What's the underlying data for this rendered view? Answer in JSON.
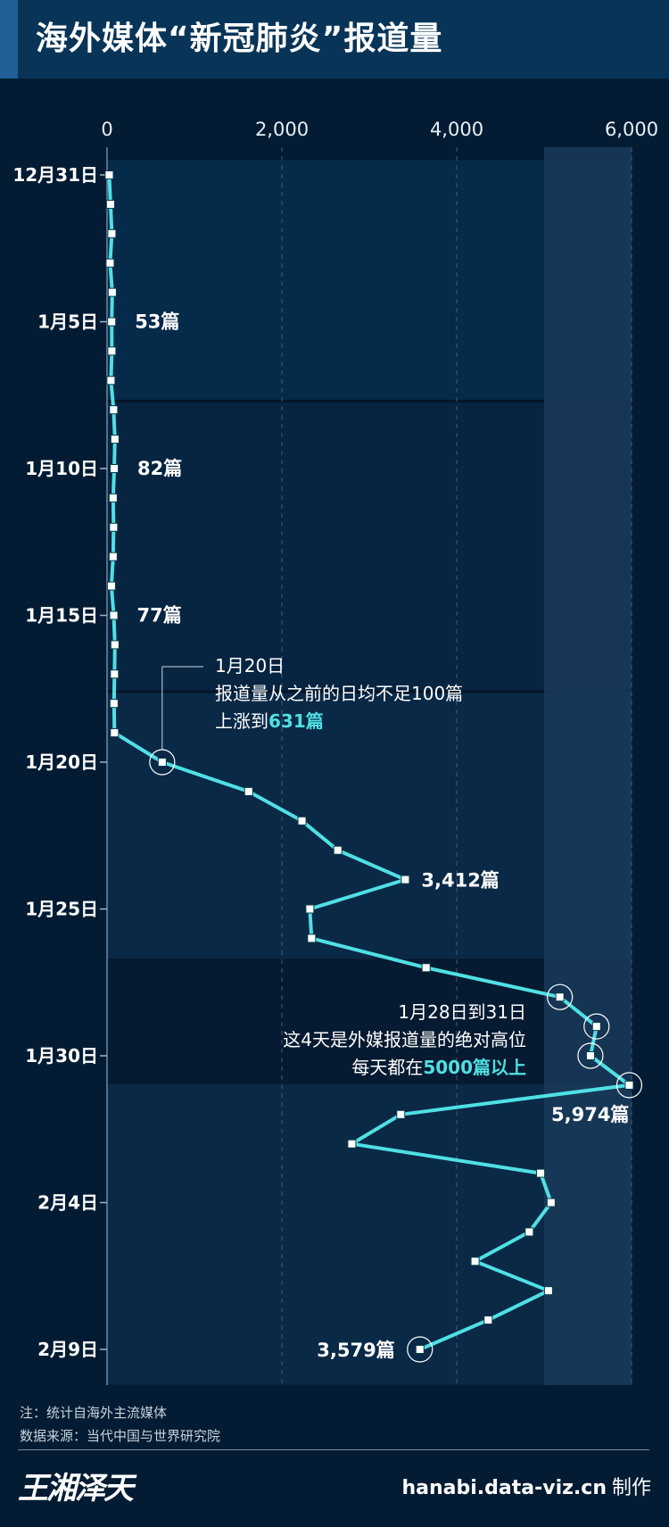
{
  "title": "海外媒体“新冠肺炎”报道量",
  "colors": {
    "background": "#041c33",
    "band": "#0b2b4c",
    "highlight_column": "#1a3a5a",
    "line": "#4fe0e4",
    "accent_text": "#4fe0e4",
    "text": "#ffffff"
  },
  "chart_data": {
    "type": "line",
    "orientation": "horizontal",
    "x_ticks": [
      "0",
      "2,000",
      "4,000",
      "6,000"
    ],
    "x_tick_values": [
      0,
      2000,
      4000,
      6000
    ],
    "xlim": [
      0,
      6000
    ],
    "y_tick_labels": [
      {
        "label": "12月31日",
        "index": 0
      },
      {
        "label": "1月5日",
        "index": 5
      },
      {
        "label": "1月10日",
        "index": 10
      },
      {
        "label": "1月15日",
        "index": 15
      },
      {
        "label": "1月20日",
        "index": 20
      },
      {
        "label": "1月25日",
        "index": 25
      },
      {
        "label": "1月30日",
        "index": 30
      },
      {
        "label": "2月4日",
        "index": 35
      },
      {
        "label": "2月9日",
        "index": 40
      }
    ],
    "highlight_range": [
      5000,
      6000
    ],
    "dates": [
      "12月31日",
      "1月1日",
      "1月2日",
      "1月3日",
      "1月4日",
      "1月5日",
      "1月6日",
      "1月7日",
      "1月8日",
      "1月9日",
      "1月10日",
      "1月11日",
      "1月12日",
      "1月13日",
      "1月14日",
      "1月15日",
      "1月16日",
      "1月17日",
      "1月18日",
      "1月19日",
      "1月20日",
      "1月21日",
      "1月22日",
      "1月23日",
      "1月24日",
      "1月25日",
      "1月26日",
      "1月27日",
      "1月28日",
      "1月29日",
      "1月30日",
      "1月31日",
      "2月1日",
      "2月2日",
      "2月3日",
      "2月4日",
      "2月5日",
      "2月6日",
      "2月7日",
      "2月8日",
      "2月9日"
    ],
    "values": [
      25,
      40,
      55,
      35,
      60,
      53,
      55,
      45,
      75,
      90,
      82,
      70,
      75,
      70,
      50,
      77,
      90,
      85,
      80,
      85,
      631,
      1620,
      2230,
      2640,
      3412,
      2320,
      2340,
      3650,
      5180,
      5600,
      5530,
      5974,
      3360,
      2800,
      4960,
      5080,
      4830,
      4210,
      5050,
      4360,
      3579
    ],
    "data_labels": [
      {
        "index": 5,
        "text": "53篇"
      },
      {
        "index": 10,
        "text": "82篇"
      },
      {
        "index": 15,
        "text": "77篇"
      },
      {
        "index": 24,
        "text": "3,412篇"
      },
      {
        "index": 31,
        "text": "5,974篇"
      },
      {
        "index": 40,
        "text": "3,579篇"
      }
    ],
    "circled_indices": [
      20,
      28,
      29,
      30,
      31,
      40
    ],
    "annotations": {
      "jan20": {
        "line1": "1月20日",
        "line2": "报道量从之前的日均不足100篇",
        "line3_prefix": "上涨到",
        "line3_highlight": "631篇"
      },
      "jan28": {
        "line1": "1月28日到31日",
        "line2": "这4天是外媒报道量的绝对高位",
        "line3_prefix": "每天都在",
        "line3_highlight": "5000篇以上"
      }
    }
  },
  "footer": {
    "note": "注：统计自海外主流媒体",
    "source": "数据来源：当代中国与世界研究院",
    "logo": "王湘泽天",
    "site": "hanabi.data-viz.cn",
    "credit_suffix": "制作"
  }
}
